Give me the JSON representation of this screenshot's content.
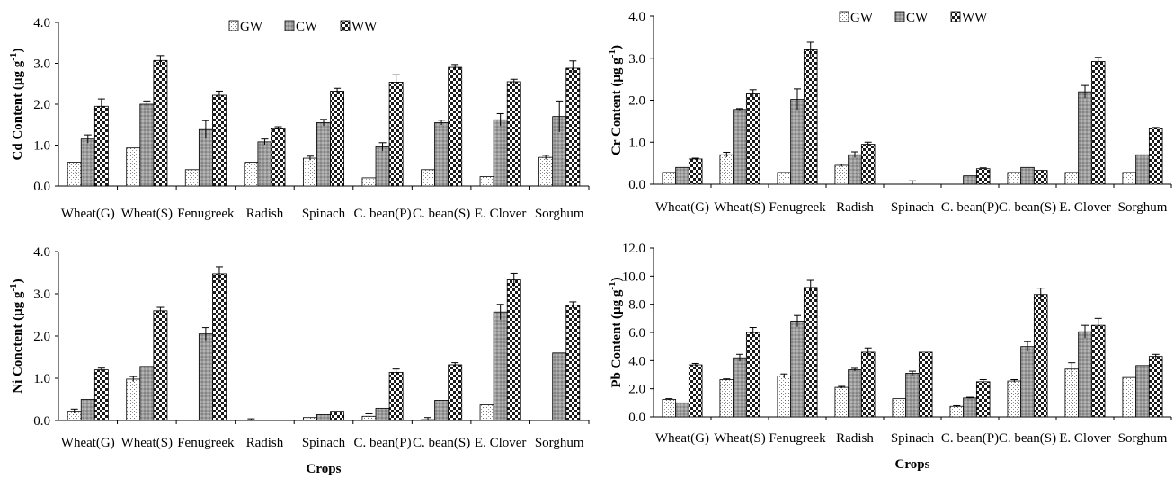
{
  "legend": [
    {
      "key": "GW",
      "label": "GW",
      "pattern": "dots"
    },
    {
      "key": "CW",
      "label": "CW",
      "pattern": "grey"
    },
    {
      "key": "WW",
      "label": "WW",
      "pattern": "checker"
    }
  ],
  "categories": [
    "Wheat(G)",
    "Wheat(S)",
    "Fenugreek",
    "Radish",
    "Spinach",
    "C. bean(P)",
    "C. bean(S)",
    "E. Clover",
    "Sorghum"
  ],
  "chart_data": [
    {
      "id": "cd",
      "type": "bar",
      "ylabel_main": "Cd Content (µg g",
      "ylabel_sup": "-1",
      "ylabel_end": ")",
      "xlabel": "",
      "ylim": [
        0,
        4
      ],
      "yticks": [
        "0.0",
        "1.0",
        "2.0",
        "3.0",
        "4.0"
      ],
      "legend_position": "top",
      "grid": false,
      "series": [
        {
          "name": "GW",
          "values": [
            0.58,
            0.93,
            0.4,
            0.58,
            0.68,
            0.2,
            0.4,
            0.23,
            0.7
          ],
          "errors": [
            0,
            0,
            0,
            0,
            0.05,
            0,
            0,
            0,
            0.05
          ]
        },
        {
          "name": "CW",
          "values": [
            1.15,
            2.0,
            1.38,
            1.08,
            1.55,
            0.96,
            1.55,
            1.62,
            1.7
          ],
          "errors": [
            0.1,
            0.08,
            0.22,
            0.07,
            0.08,
            0.1,
            0.06,
            0.15,
            0.38
          ]
        },
        {
          "name": "WW",
          "values": [
            1.95,
            3.07,
            2.22,
            1.4,
            2.32,
            2.54,
            2.9,
            2.55,
            2.88
          ],
          "errors": [
            0.18,
            0.12,
            0.1,
            0.05,
            0.07,
            0.18,
            0.07,
            0.06,
            0.18
          ]
        }
      ]
    },
    {
      "id": "cr",
      "type": "bar",
      "ylabel_main": "Cr  Content  (µg g",
      "ylabel_sup": "-1",
      "ylabel_end": ")",
      "xlabel": "",
      "ylim": [
        0,
        4
      ],
      "yticks": [
        "0.0",
        "1.0",
        "2.0",
        "3.0",
        "4.0"
      ],
      "legend_position": "top",
      "grid": false,
      "series": [
        {
          "name": "GW",
          "values": [
            0.28,
            0.7,
            0.28,
            0.45,
            0.0,
            0.0,
            0.28,
            0.28,
            0.28
          ],
          "errors": [
            0,
            0.06,
            0,
            0.03,
            0,
            0,
            0,
            0,
            0
          ]
        },
        {
          "name": "CW",
          "values": [
            0.4,
            1.78,
            2.02,
            0.7,
            0.0,
            0.2,
            0.4,
            2.2,
            0.7
          ],
          "errors": [
            0,
            0.02,
            0.25,
            0.07,
            0.08,
            0,
            0,
            0.15,
            0
          ]
        },
        {
          "name": "WW",
          "values": [
            0.6,
            2.15,
            3.2,
            0.95,
            0.0,
            0.37,
            0.33,
            2.92,
            1.33
          ],
          "errors": [
            0.02,
            0.1,
            0.18,
            0.05,
            0,
            0.02,
            0,
            0.1,
            0.02
          ]
        }
      ]
    },
    {
      "id": "ni",
      "type": "bar",
      "ylabel_main": "Ni Conctent  (µg g",
      "ylabel_sup": "-1",
      "ylabel_end": ")",
      "xlabel": "Crops",
      "ylim": [
        0,
        4
      ],
      "yticks": [
        "0.0",
        "1.0",
        "2.0",
        "3.0",
        "4.0"
      ],
      "legend_position": "none",
      "grid": false,
      "series": [
        {
          "name": "GW",
          "values": [
            0.22,
            0.98,
            0.0,
            0.0,
            0.07,
            0.1,
            0.02,
            0.37,
            0.0
          ],
          "errors": [
            0.05,
            0.06,
            0,
            0.04,
            0,
            0.06,
            0.05,
            0,
            0
          ]
        },
        {
          "name": "CW",
          "values": [
            0.5,
            1.28,
            2.05,
            0.0,
            0.14,
            0.29,
            0.48,
            2.57,
            1.6
          ],
          "errors": [
            0,
            0,
            0.15,
            0,
            0,
            0,
            0,
            0.18,
            0
          ]
        },
        {
          "name": "WW",
          "values": [
            1.2,
            2.6,
            3.47,
            0.0,
            0.22,
            1.14,
            1.32,
            3.33,
            2.73
          ],
          "errors": [
            0.04,
            0.08,
            0.17,
            0,
            0,
            0.08,
            0.05,
            0.15,
            0.08
          ]
        }
      ]
    },
    {
      "id": "pb",
      "type": "bar",
      "ylabel_main": "Pb  Content  (µg g",
      "ylabel_sup": "-1",
      "ylabel_end": ")",
      "xlabel": "Crops",
      "ylim": [
        0,
        12
      ],
      "yticks": [
        "0.0",
        "2.0",
        "4.0",
        "6.0",
        "8.0",
        "10.0",
        "12.0"
      ],
      "legend_position": "none",
      "grid": false,
      "series": [
        {
          "name": "GW",
          "values": [
            1.25,
            2.65,
            2.9,
            2.1,
            1.3,
            0.75,
            2.55,
            3.4,
            2.8
          ],
          "errors": [
            0.05,
            0.05,
            0.15,
            0.07,
            0,
            0.05,
            0.1,
            0.45,
            0
          ]
        },
        {
          "name": "CW",
          "values": [
            1.0,
            4.2,
            6.8,
            3.35,
            3.1,
            1.35,
            5.0,
            6.05,
            3.65
          ],
          "errors": [
            0,
            0.25,
            0.4,
            0.1,
            0.15,
            0.05,
            0.35,
            0.45,
            0
          ]
        },
        {
          "name": "WW",
          "values": [
            3.7,
            6.0,
            9.2,
            4.6,
            4.6,
            2.5,
            8.7,
            6.5,
            4.3
          ],
          "errors": [
            0.1,
            0.35,
            0.5,
            0.3,
            0,
            0.15,
            0.45,
            0.5,
            0.15
          ]
        }
      ]
    }
  ]
}
